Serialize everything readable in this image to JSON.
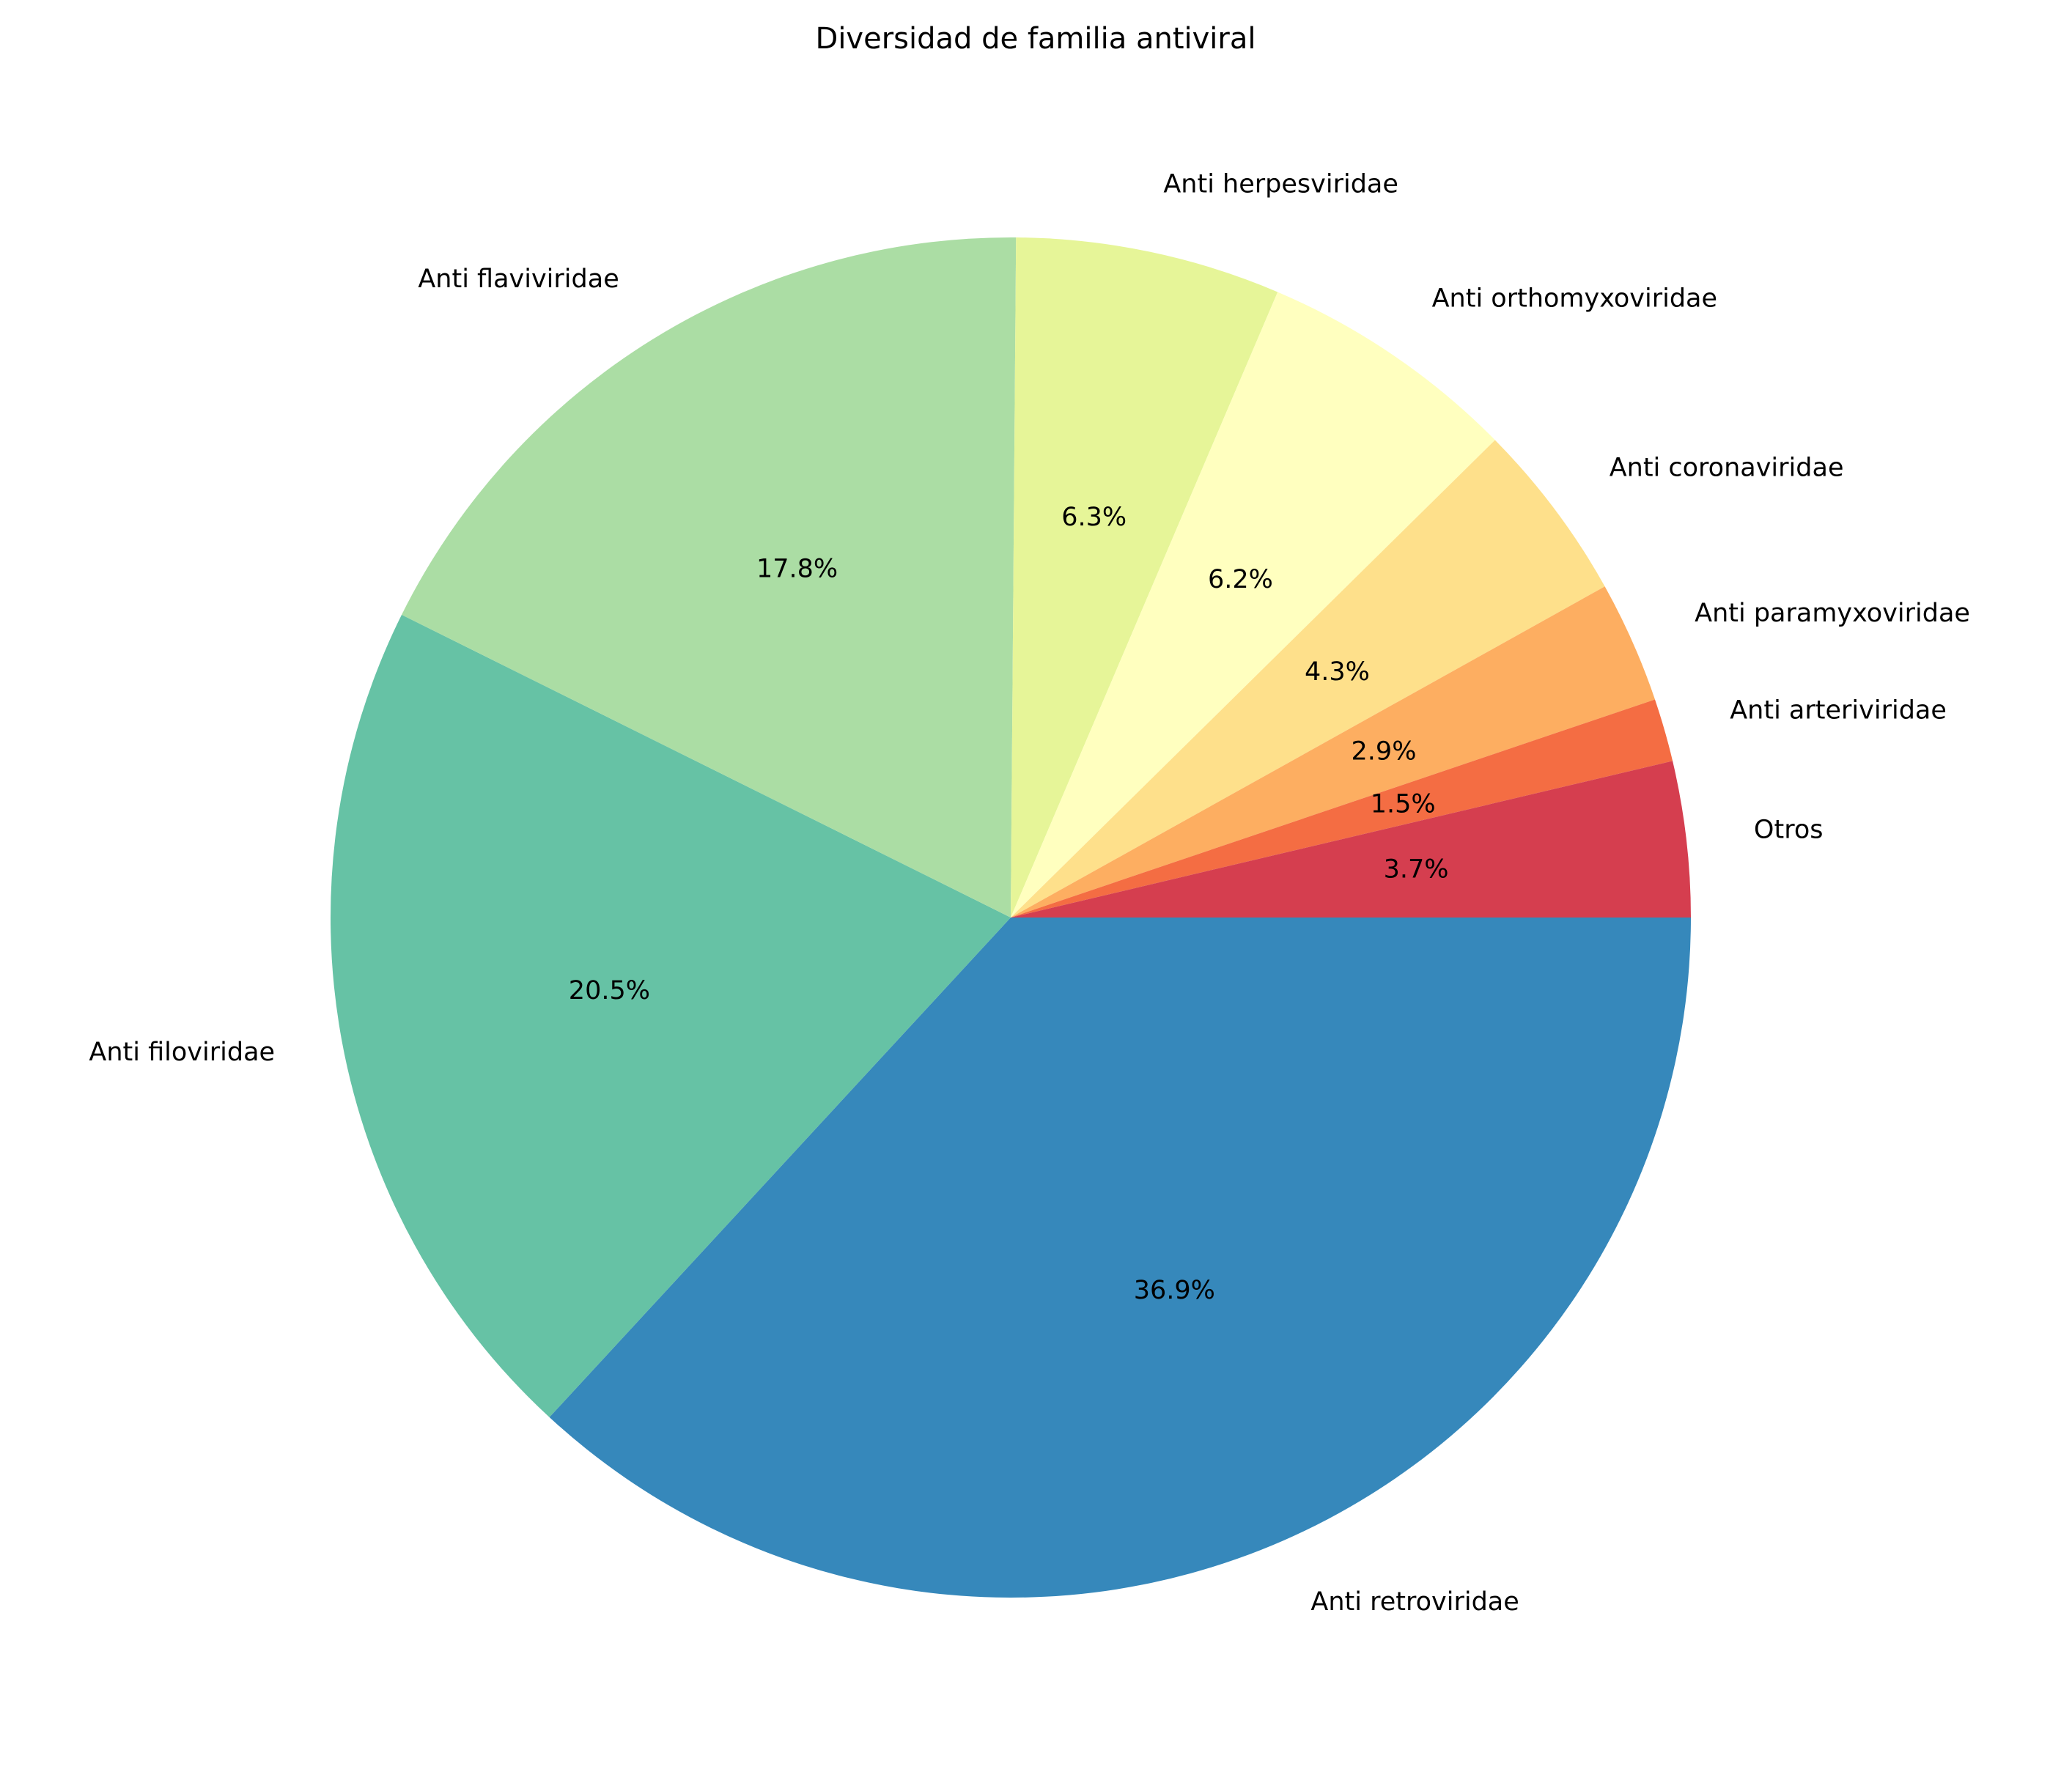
{
  "chart_data": {
    "type": "pie",
    "title": "Diversidad de familia antiviral",
    "start_angle": "0° (3 o'clock)",
    "direction": "clockwise",
    "slices": [
      {
        "label": "Anti retroviridae",
        "value": 36.9,
        "pct_label": "36.9%",
        "color": "#3688BB"
      },
      {
        "label": "Anti filoviridae",
        "value": 20.5,
        "pct_label": "20.5%",
        "color": "#66C2A5"
      },
      {
        "label": "Anti flaviviridae",
        "value": 17.8,
        "pct_label": "17.8%",
        "color": "#ABDDA4"
      },
      {
        "label": "Anti herpesviridae",
        "value": 6.3,
        "pct_label": "6.3%",
        "color": "#E6F598"
      },
      {
        "label": "Anti orthomyxoviridae",
        "value": 6.2,
        "pct_label": "6.2%",
        "color": "#FFFFBF"
      },
      {
        "label": "Anti coronaviridae",
        "value": 4.3,
        "pct_label": "4.3%",
        "color": "#FEE08B"
      },
      {
        "label": "Anti paramyxoviridae",
        "value": 2.9,
        "pct_label": "2.9%",
        "color": "#FDAE61"
      },
      {
        "label": "Anti arteriviridae",
        "value": 1.5,
        "pct_label": "1.5%",
        "color": "#F46D43"
      },
      {
        "label": "Otros",
        "value": 3.7,
        "pct_label": "3.7%",
        "color": "#D53E4F"
      }
    ]
  }
}
